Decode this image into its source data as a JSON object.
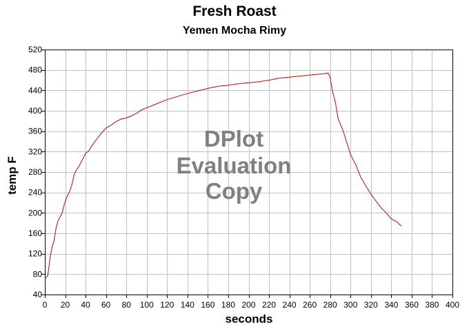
{
  "watermark": [
    "DPlot",
    "Evaluation",
    "Copy"
  ],
  "chart_data": {
    "type": "line",
    "title": "Fresh Roast",
    "subtitle": "Yemen Mocha Rimy",
    "xlabel": "seconds",
    "ylabel": "temp F",
    "xlim": [
      0,
      400
    ],
    "ylim": [
      40,
      520
    ],
    "xticks": [
      0,
      20,
      40,
      60,
      80,
      100,
      120,
      140,
      160,
      180,
      200,
      220,
      240,
      260,
      280,
      300,
      320,
      340,
      360,
      380,
      400
    ],
    "yticks": [
      40,
      80,
      120,
      160,
      200,
      240,
      280,
      320,
      360,
      400,
      440,
      480,
      520
    ],
    "grid": true,
    "line_color": "#cc0000",
    "series": [
      {
        "x": [
          1,
          3,
          5,
          7,
          9,
          11,
          13,
          15,
          17,
          19,
          21,
          23,
          25,
          27,
          29,
          31,
          34,
          37,
          40,
          43,
          46,
          50,
          55,
          60,
          65,
          70,
          75,
          80,
          85,
          90,
          95,
          100,
          110,
          120,
          130,
          140,
          150,
          160,
          170,
          180,
          190,
          200,
          210,
          220,
          230,
          240,
          250,
          260,
          270,
          275,
          278,
          280,
          282,
          285,
          288,
          292,
          296,
          300,
          305,
          310,
          315,
          320,
          325,
          330,
          335,
          340,
          345,
          350
        ],
        "y": [
          72,
          78,
          110,
          132,
          145,
          170,
          185,
          192,
          200,
          216,
          228,
          237,
          245,
          259,
          276,
          284,
          293,
          305,
          317,
          321,
          331,
          342,
          355,
          366,
          372,
          379,
          384,
          386,
          390,
          395,
          402,
          406,
          414,
          422,
          428,
          434,
          439,
          444,
          448,
          450,
          453,
          455,
          457,
          460,
          464,
          466,
          468,
          470,
          472,
          473,
          474,
          466,
          440,
          418,
          383,
          365,
          340,
          314,
          295,
          270,
          253,
          237,
          223,
          210,
          200,
          188,
          183,
          174
        ]
      }
    ]
  }
}
